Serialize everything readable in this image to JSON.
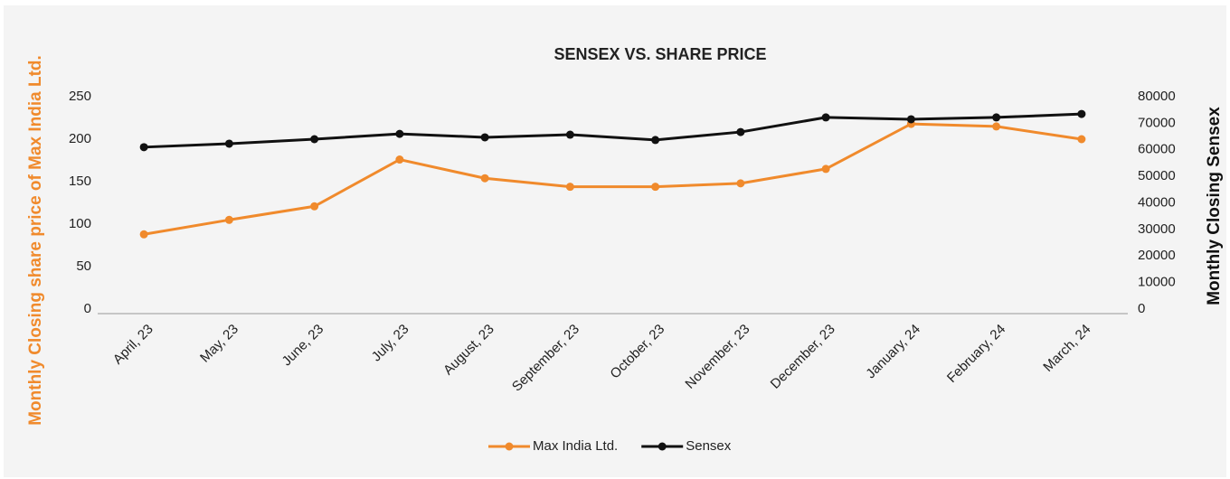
{
  "chart_data": {
    "type": "line",
    "title": "SENSEX VS. SHARE PRICE",
    "ylabel": "Monthly Closing share price of Max India Ltd.",
    "y2label": "Monthly Closing Sensex",
    "categories": [
      "April, 23",
      "May, 23",
      "June, 23",
      "July, 23",
      "August, 23",
      "September, 23",
      "October, 23",
      "November, 23",
      "December, 23",
      "January, 24",
      "February, 24",
      "March, 24"
    ],
    "series": [
      {
        "name": "Max India Ltd.",
        "color": "#f08a2c",
        "values": [
          88,
          105,
          121,
          176,
          154,
          144,
          144,
          148,
          165,
          218,
          215,
          200
        ]
      },
      {
        "name": "Sensex",
        "color": "#111111",
        "axis": "y2",
        "values": [
          61000,
          62300,
          64000,
          66000,
          64700,
          65700,
          63700,
          66700,
          72200,
          71500,
          72200,
          73500
        ]
      }
    ],
    "ylim": [
      0,
      250
    ],
    "yticks": [
      0,
      50,
      100,
      150,
      200,
      250
    ],
    "y2lim": [
      0,
      80000
    ],
    "y2ticks": [
      0,
      10000,
      20000,
      30000,
      40000,
      50000,
      60000,
      70000,
      80000
    ],
    "legend": "bottom"
  }
}
